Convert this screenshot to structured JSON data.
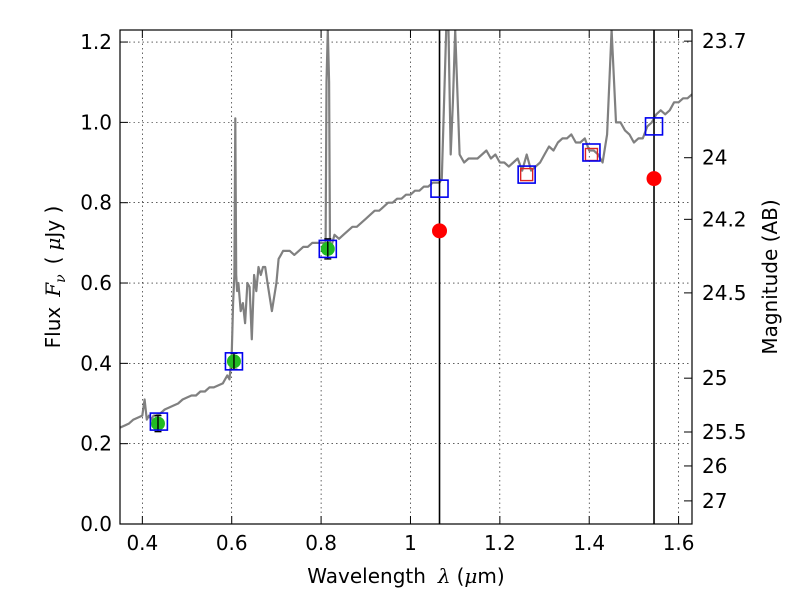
{
  "chart_data": {
    "type": "scatter",
    "xlabel_text": "Wavelength",
    "xlabel_symbol": "λ",
    "xlabel_units_open": "(",
    "xlabel_units_mu": "μ",
    "xlabel_units_rest": "m)",
    "ylabel_text": "Flux",
    "ylabel_symbol": "F",
    "ylabel_symbol_sub": "ν",
    "ylabel_units_open": "(",
    "ylabel_units_mu": "μ",
    "ylabel_units_rest": "Jy )",
    "y2label": "Magnitude (AB)",
    "xlim": [
      0.35,
      1.63
    ],
    "ylim": [
      0.0,
      1.23
    ],
    "grid": true,
    "x_ticks": [
      {
        "value": 0.4,
        "label": "0.4"
      },
      {
        "value": 0.6,
        "label": "0.6"
      },
      {
        "value": 0.8,
        "label": "0.8"
      },
      {
        "value": 1.0,
        "label": "1"
      },
      {
        "value": 1.2,
        "label": "1.2"
      },
      {
        "value": 1.4,
        "label": "1.4"
      },
      {
        "value": 1.6,
        "label": "1.6"
      }
    ],
    "y_ticks": [
      {
        "value": 0.0,
        "label": "0.0"
      },
      {
        "value": 0.2,
        "label": "0.2"
      },
      {
        "value": 0.4,
        "label": "0.4"
      },
      {
        "value": 0.6,
        "label": "0.6"
      },
      {
        "value": 0.8,
        "label": "0.8"
      },
      {
        "value": 1.0,
        "label": "1.0"
      },
      {
        "value": 1.2,
        "label": "1.2"
      }
    ],
    "y2_ticks": [
      {
        "mag": 23.7,
        "label": "23.7"
      },
      {
        "mag": 24,
        "label": "24"
      },
      {
        "mag": 24.2,
        "label": "24.2"
      },
      {
        "mag": 24.5,
        "label": "24.5"
      },
      {
        "mag": 25,
        "label": "25"
      },
      {
        "mag": 25.5,
        "label": "25.5"
      },
      {
        "mag": 26,
        "label": "26"
      },
      {
        "mag": 27,
        "label": "27"
      }
    ],
    "vertical_lines": [
      1.065,
      1.545
    ],
    "spectrum": {
      "color": "#808080",
      "x": [
        0.35,
        0.36,
        0.37,
        0.38,
        0.39,
        0.4,
        0.405,
        0.41,
        0.415,
        0.42,
        0.425,
        0.43,
        0.44,
        0.45,
        0.46,
        0.47,
        0.48,
        0.49,
        0.5,
        0.51,
        0.52,
        0.53,
        0.54,
        0.55,
        0.56,
        0.57,
        0.58,
        0.59,
        0.595,
        0.6,
        0.603,
        0.606,
        0.608,
        0.61,
        0.612,
        0.615,
        0.62,
        0.625,
        0.63,
        0.635,
        0.64,
        0.645,
        0.65,
        0.655,
        0.66,
        0.665,
        0.67,
        0.675,
        0.68,
        0.69,
        0.7,
        0.705,
        0.71,
        0.715,
        0.72,
        0.73,
        0.74,
        0.75,
        0.76,
        0.77,
        0.78,
        0.79,
        0.8,
        0.81,
        0.812,
        0.815,
        0.818,
        0.82,
        0.825,
        0.83,
        0.84,
        0.85,
        0.86,
        0.87,
        0.88,
        0.89,
        0.9,
        0.91,
        0.92,
        0.93,
        0.94,
        0.95,
        0.96,
        0.97,
        0.98,
        0.99,
        1.0,
        1.01,
        1.02,
        1.03,
        1.04,
        1.05,
        1.06,
        1.065,
        1.07,
        1.08,
        1.085,
        1.09,
        1.095,
        1.1,
        1.11,
        1.12,
        1.13,
        1.14,
        1.15,
        1.16,
        1.17,
        1.18,
        1.19,
        1.2,
        1.21,
        1.22,
        1.23,
        1.24,
        1.25,
        1.26,
        1.27,
        1.28,
        1.29,
        1.3,
        1.31,
        1.32,
        1.33,
        1.34,
        1.35,
        1.36,
        1.37,
        1.38,
        1.39,
        1.4,
        1.41,
        1.42,
        1.43,
        1.44,
        1.45,
        1.46,
        1.47,
        1.48,
        1.49,
        1.5,
        1.51,
        1.52,
        1.53,
        1.54,
        1.55,
        1.56,
        1.57,
        1.58,
        1.59,
        1.6,
        1.61,
        1.62,
        1.63
      ],
      "y": [
        0.24,
        0.245,
        0.25,
        0.26,
        0.265,
        0.27,
        0.31,
        0.26,
        0.27,
        0.26,
        0.27,
        0.27,
        0.275,
        0.285,
        0.29,
        0.295,
        0.3,
        0.31,
        0.315,
        0.32,
        0.32,
        0.33,
        0.33,
        0.34,
        0.34,
        0.345,
        0.35,
        0.37,
        0.36,
        0.42,
        0.55,
        0.62,
        1.01,
        0.62,
        0.58,
        0.6,
        0.53,
        0.55,
        0.5,
        0.6,
        0.59,
        0.46,
        0.62,
        0.58,
        0.64,
        0.62,
        0.64,
        0.64,
        0.6,
        0.53,
        0.6,
        0.66,
        0.67,
        0.68,
        0.68,
        0.68,
        0.67,
        0.68,
        0.69,
        0.69,
        0.7,
        0.7,
        0.7,
        0.7,
        1.1,
        1.23,
        1.1,
        0.68,
        0.7,
        0.72,
        0.71,
        0.72,
        0.73,
        0.74,
        0.74,
        0.75,
        0.76,
        0.77,
        0.78,
        0.78,
        0.79,
        0.8,
        0.8,
        0.81,
        0.81,
        0.82,
        0.82,
        0.83,
        0.83,
        0.84,
        0.84,
        0.85,
        0.85,
        0.85,
        0.86,
        1.23,
        1.23,
        0.92,
        1.05,
        1.23,
        0.92,
        0.9,
        0.91,
        0.91,
        0.91,
        0.92,
        0.93,
        0.91,
        0.92,
        0.9,
        0.9,
        0.89,
        0.9,
        0.91,
        0.88,
        0.92,
        0.88,
        0.89,
        0.9,
        0.92,
        0.94,
        0.93,
        0.95,
        0.96,
        0.96,
        0.97,
        0.95,
        0.95,
        0.96,
        0.93,
        0.93,
        0.92,
        0.9,
        0.97,
        1.23,
        1.0,
        1.0,
        0.98,
        0.97,
        0.95,
        0.96,
        0.96,
        0.99,
        1.0,
        1.02,
        1.03,
        1.02,
        1.03,
        1.05,
        1.05,
        1.06,
        1.06,
        1.07
      ]
    },
    "observed": {
      "color": "#22bb22",
      "points": [
        {
          "x": 0.435,
          "y": 0.25,
          "err": 0.02
        },
        {
          "x": 0.605,
          "y": 0.405,
          "err": 0.02
        },
        {
          "x": 0.815,
          "y": 0.685,
          "err": 0.025
        }
      ]
    },
    "model_boxes": {
      "color": "#0000ee",
      "points": [
        {
          "x": 0.437,
          "y": 0.255
        },
        {
          "x": 0.605,
          "y": 0.405
        },
        {
          "x": 0.815,
          "y": 0.685
        },
        {
          "x": 1.065,
          "y": 0.835
        },
        {
          "x": 1.26,
          "y": 0.87
        },
        {
          "x": 1.405,
          "y": 0.925
        },
        {
          "x": 1.545,
          "y": 0.99
        }
      ]
    },
    "small_red_boxes": {
      "color": "#dd2222",
      "points": [
        {
          "x": 1.26,
          "y": 0.87
        },
        {
          "x": 1.405,
          "y": 0.92
        }
      ]
    },
    "upper_limits": {
      "color": "#ff0000",
      "points": [
        {
          "x": 1.065,
          "y": 0.73
        },
        {
          "x": 1.545,
          "y": 0.86
        }
      ]
    }
  }
}
